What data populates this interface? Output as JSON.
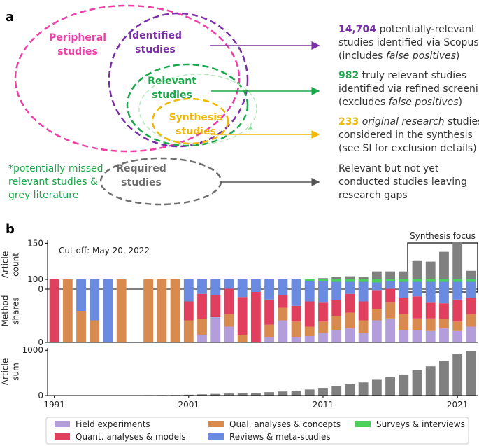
{
  "panel_a": {
    "label": "a",
    "ellipses": {
      "peripheral": {
        "line1": "Peripheral",
        "line2": "studies",
        "color": "#ee3fa8"
      },
      "identified": {
        "line1": "Identified",
        "line2": "studies",
        "color": "#7b2fa6"
      },
      "relevant": {
        "line1": "Relevant",
        "line2": "studies",
        "color": "#1aa84a"
      },
      "synthesis": {
        "line1": "Synthesis",
        "line2": "studies",
        "color": "#f2b705"
      },
      "required": {
        "line1": "Required",
        "line2": "studies",
        "color": "#6d6d6d"
      },
      "missed_marker": {
        "text": "*",
        "color": "#7fd68f"
      }
    },
    "missed_note": {
      "line1": "*potentially missed",
      "line2": "relevant studies &",
      "line3": "grey literature",
      "color": "#1aa84a"
    },
    "descriptions": {
      "identified": {
        "count": "14,704",
        "rest1": " potentially-relevant",
        "line2": "studies identified via Scopus",
        "line3a": "(includes ",
        "line3em": "false positives",
        "line3b": ")"
      },
      "relevant": {
        "count": "982",
        "rest1": " truly relevant studies",
        "line2": "identified via refined screening",
        "line3a": "(excludes ",
        "line3em": "false positives",
        "line3b": ")"
      },
      "synthesis": {
        "count": "233",
        "rest1em": "original research",
        "rest1b": " studies",
        "line2": "considered in the synthesis",
        "line3": "(see SI for exclusion details)"
      },
      "required": {
        "line1": "Relevant but not yet",
        "line2": "conducted studies leaving",
        "line3": "research gaps"
      }
    }
  },
  "panel_b": {
    "label": "b",
    "cutoff_text": "Cut off: May 20, 2022",
    "synthesis_focus_label": "Synthesis focus",
    "colors": {
      "field": "#b39ddb",
      "qual": "#d98a4e",
      "quant": "#e0405e",
      "reviews": "#6a8be0",
      "surveys": "#4dcf5e",
      "bars": "#808080"
    }
  },
  "chart_data": [
    {
      "type": "bar",
      "title": "",
      "ylabel": "Article count",
      "ylim": [
        0,
        160
      ],
      "yticks": [
        "0",
        "150"
      ],
      "x": [
        1991,
        1992,
        1993,
        1994,
        1995,
        1996,
        1997,
        1998,
        1999,
        2000,
        2001,
        2002,
        2003,
        2004,
        2005,
        2006,
        2007,
        2008,
        2009,
        2010,
        2011,
        2012,
        2013,
        2014,
        2015,
        2016,
        2017,
        2018,
        2019,
        2020,
        2021,
        2022
      ],
      "values": [
        1,
        1,
        2,
        2,
        1,
        1,
        0,
        1,
        1,
        1,
        7,
        9,
        9,
        9,
        6,
        11,
        13,
        14,
        20,
        24,
        36,
        39,
        42,
        40,
        58,
        58,
        58,
        92,
        90,
        122,
        155,
        60
      ]
    },
    {
      "type": "bar",
      "title": "",
      "ylabel": "Method shares",
      "ylim": [
        0,
        100
      ],
      "yticks": [
        "0",
        "100"
      ],
      "x": [
        1991,
        1992,
        1993,
        1994,
        1995,
        1996,
        1997,
        1998,
        1999,
        2000,
        2001,
        2002,
        2003,
        2004,
        2005,
        2006,
        2007,
        2008,
        2009,
        2010,
        2011,
        2012,
        2013,
        2014,
        2015,
        2016,
        2017,
        2018,
        2019,
        2020,
        2021,
        2022
      ],
      "series": [
        {
          "name": "Field experiments",
          "values": [
            0,
            0,
            0,
            0,
            0,
            0,
            0,
            0,
            0,
            0,
            0,
            12,
            40,
            25,
            0,
            0,
            8,
            35,
            8,
            10,
            15,
            20,
            22,
            15,
            35,
            38,
            20,
            20,
            18,
            22,
            18,
            25
          ]
        },
        {
          "name": "Qual. analyses & concepts",
          "values": [
            0,
            100,
            50,
            35,
            0,
            100,
            0,
            100,
            100,
            100,
            35,
            25,
            0,
            20,
            12,
            0,
            20,
            20,
            25,
            15,
            18,
            22,
            25,
            20,
            18,
            25,
            25,
            18,
            20,
            15,
            15,
            20
          ]
        },
        {
          "name": "Quant. analyses & models",
          "values": [
            100,
            0,
            0,
            0,
            0,
            0,
            0,
            0,
            0,
            0,
            30,
            40,
            35,
            40,
            60,
            80,
            40,
            20,
            25,
            40,
            30,
            25,
            30,
            30,
            30,
            22,
            25,
            35,
            25,
            25,
            35,
            25
          ]
        },
        {
          "name": "Reviews & meta-studies",
          "values": [
            0,
            0,
            50,
            65,
            100,
            0,
            0,
            0,
            0,
            0,
            35,
            23,
            25,
            15,
            28,
            20,
            32,
            25,
            42,
            32,
            34,
            29,
            19,
            31,
            12,
            12,
            26,
            23,
            33,
            34,
            28,
            26
          ]
        },
        {
          "name": "Surveys & interviews",
          "values": [
            0,
            0,
            0,
            0,
            0,
            0,
            0,
            0,
            0,
            0,
            0,
            0,
            0,
            0,
            0,
            0,
            0,
            0,
            0,
            3,
            3,
            4,
            4,
            4,
            5,
            3,
            4,
            4,
            4,
            4,
            4,
            4
          ]
        }
      ]
    },
    {
      "type": "bar",
      "title": "",
      "xlabel": "",
      "ylabel": "Article sum",
      "ylim": [
        0,
        1050
      ],
      "yticks": [
        "0",
        "1000"
      ],
      "xticks": [
        "1991",
        "2001",
        "2011",
        "2021"
      ],
      "x": [
        1991,
        1992,
        1993,
        1994,
        1995,
        1996,
        1997,
        1998,
        1999,
        2000,
        2001,
        2002,
        2003,
        2004,
        2005,
        2006,
        2007,
        2008,
        2009,
        2010,
        2011,
        2012,
        2013,
        2014,
        2015,
        2016,
        2017,
        2018,
        2019,
        2020,
        2021,
        2022
      ],
      "values": [
        1,
        2,
        4,
        6,
        7,
        8,
        8,
        9,
        10,
        11,
        18,
        27,
        36,
        45,
        51,
        62,
        75,
        89,
        109,
        133,
        169,
        208,
        250,
        290,
        348,
        406,
        464,
        556,
        646,
        768,
        923,
        983
      ]
    }
  ],
  "legend": {
    "items": [
      {
        "label": "Field experiments",
        "color": "#b39ddb"
      },
      {
        "label": "Qual. analyses & concepts",
        "color": "#d98a4e"
      },
      {
        "label": "Quant. analyses & models",
        "color": "#e0405e"
      },
      {
        "label": "Reviews & meta-studies",
        "color": "#6a8be0"
      },
      {
        "label": "Surveys & interviews",
        "color": "#4dcf5e"
      }
    ]
  }
}
